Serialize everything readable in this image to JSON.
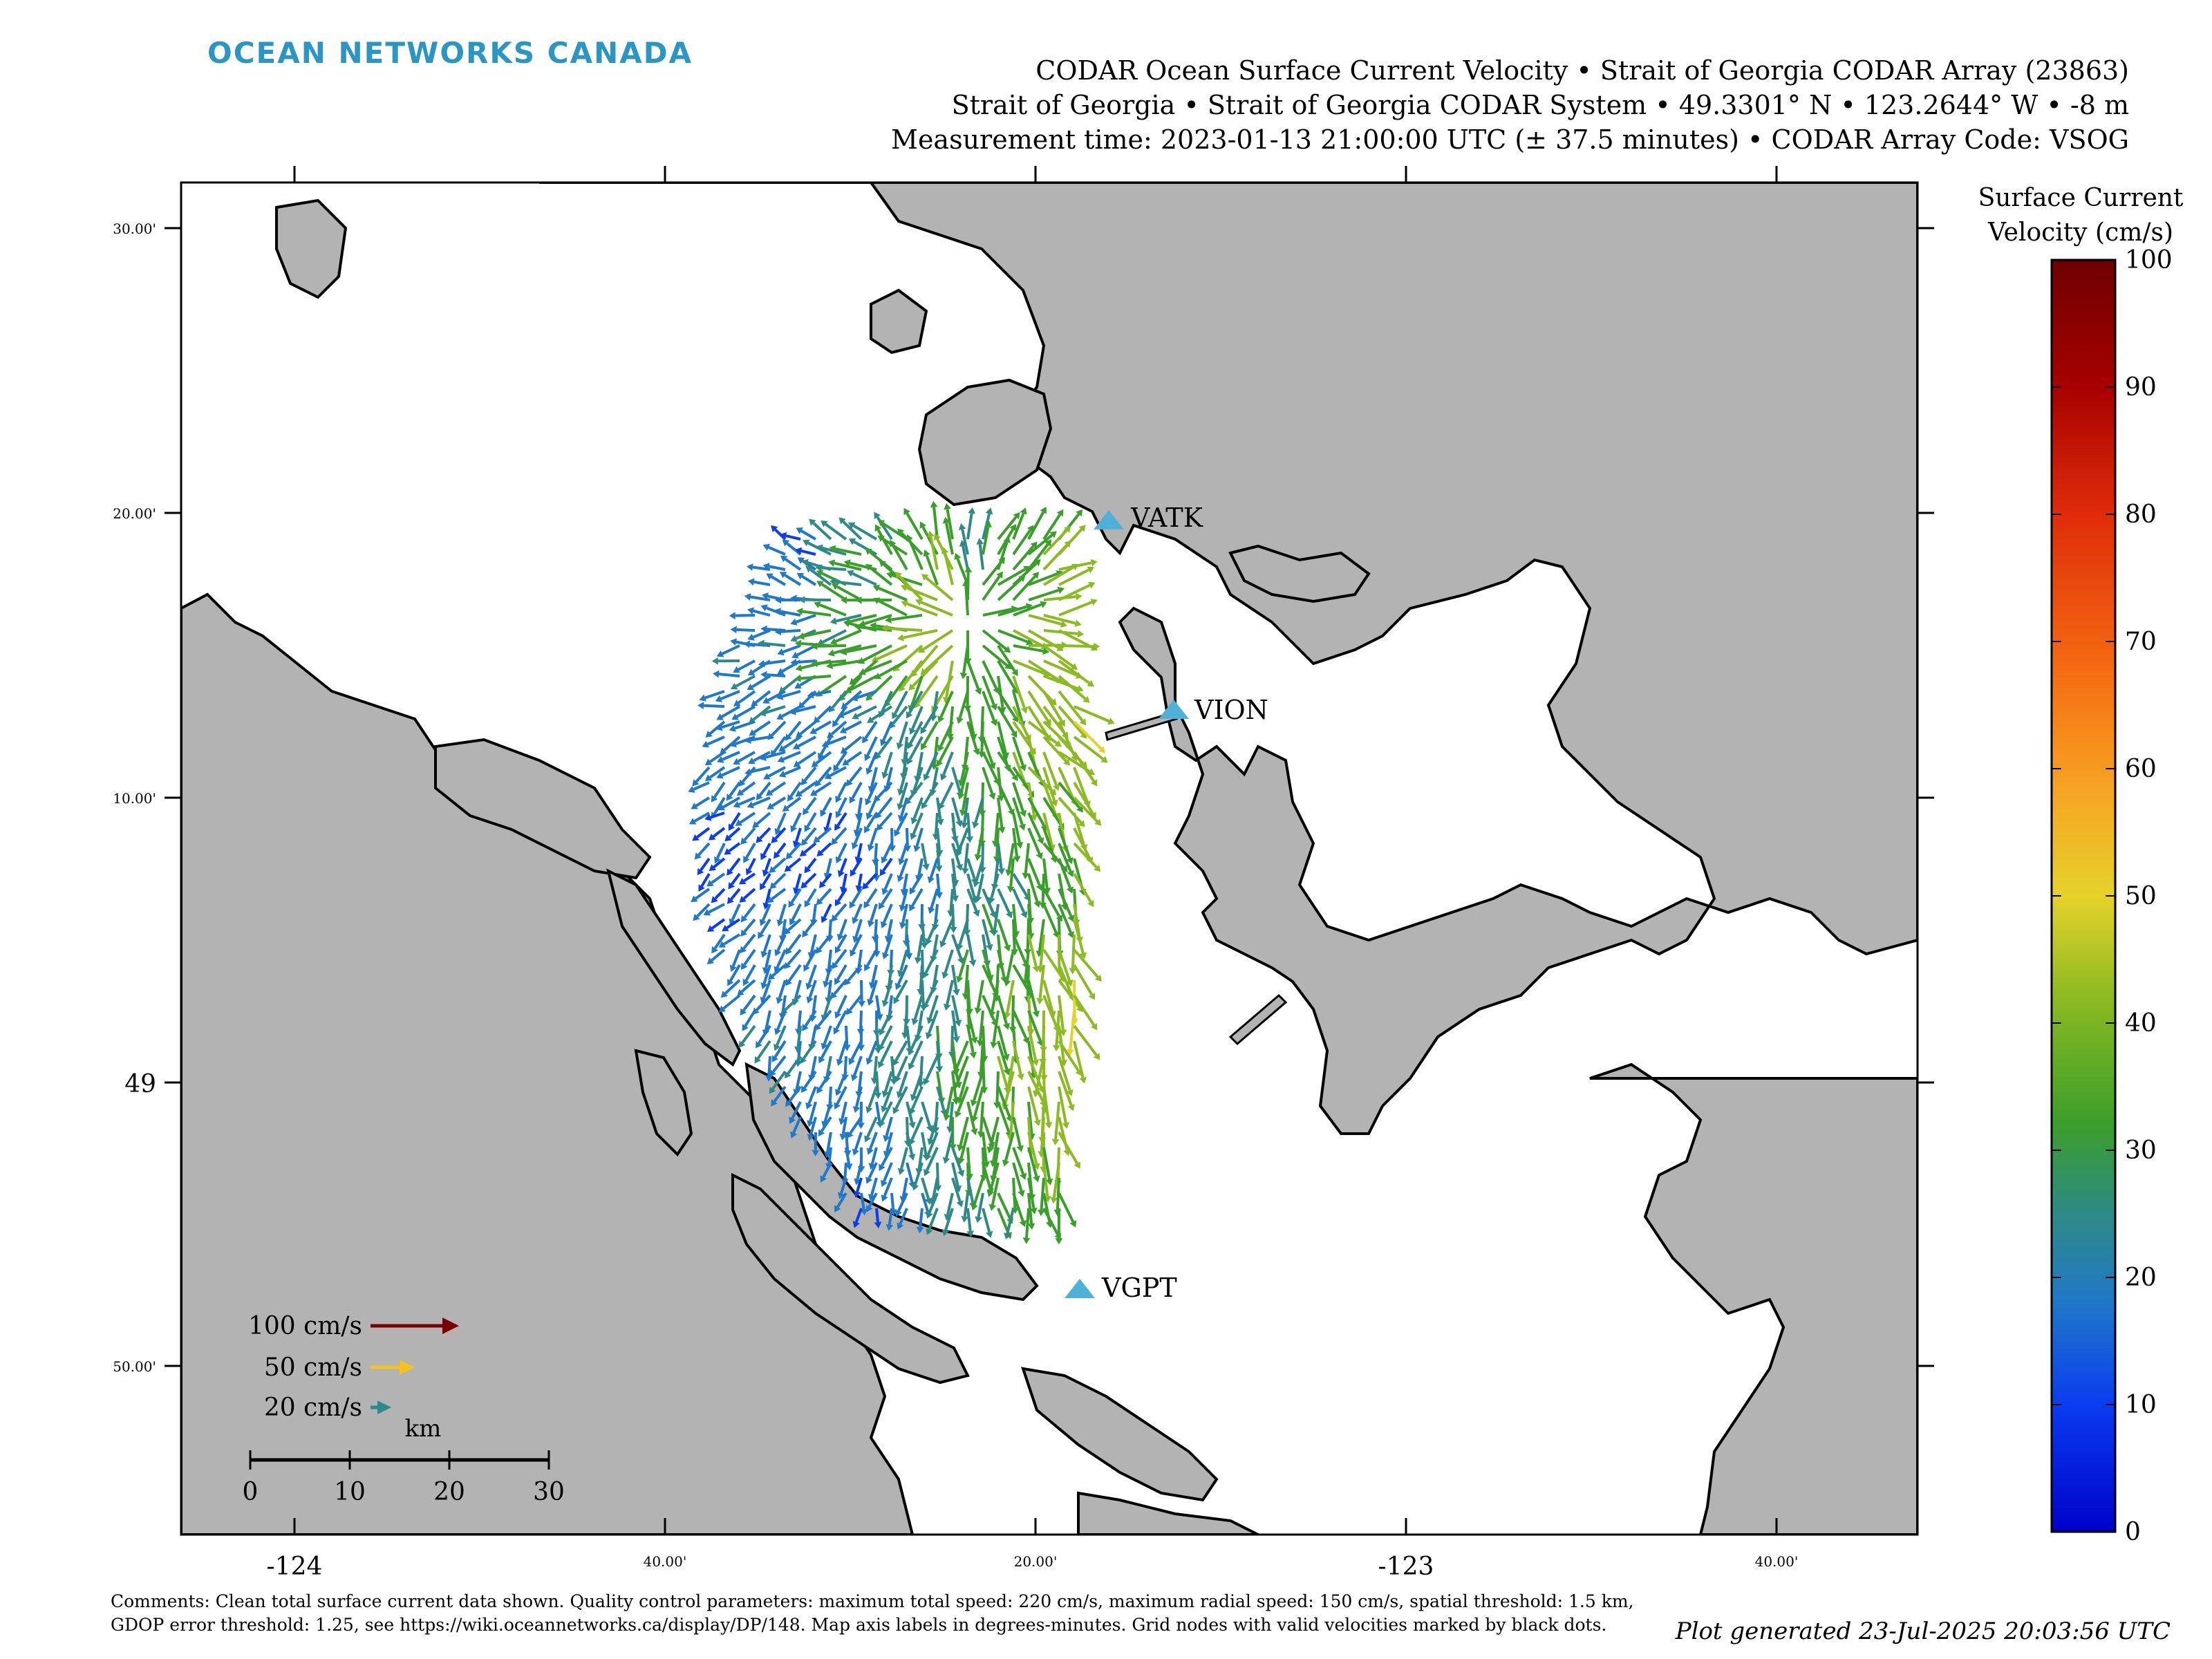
{
  "brand": "OCEAN NETWORKS CANADA",
  "title": {
    "line1": "CODAR Ocean Surface Current Velocity • Strait of Georgia CODAR Array (23863)",
    "line2": "Strait of Georgia • Strait of Georgia CODAR System • 49.3301° N • 123.2644° W • -8 m",
    "line3": "Measurement time: 2023-01-13 21:00:00 UTC (± 37.5 minutes) • CODAR Array Code: VSOG"
  },
  "map": {
    "x_ticks_bottom": [
      {
        "label": "-124",
        "major": true
      },
      {
        "label": "40.00'",
        "major": false
      },
      {
        "label": "20.00'",
        "major": false
      },
      {
        "label": "-123",
        "major": true
      },
      {
        "label": "40.00'",
        "major": false
      }
    ],
    "y_ticks_left": [
      {
        "label": "30.00'",
        "major": false
      },
      {
        "label": "20.00'",
        "major": false
      },
      {
        "label": "10.00'",
        "major": false
      },
      {
        "label": "49",
        "major": true
      },
      {
        "label": "50.00'",
        "major": false
      }
    ],
    "stations": [
      {
        "code": "VATK"
      },
      {
        "code": "VION"
      },
      {
        "code": "VGPT"
      }
    ],
    "land_color": "#b3b3b3",
    "water_color": "#ffffff"
  },
  "legend": {
    "reference_arrows": [
      {
        "label": "100 cm/s",
        "speed": 100,
        "color": "#7a0000"
      },
      {
        "label": "50 cm/s",
        "speed": 50,
        "color": "#f2c21e"
      },
      {
        "label": "20 cm/s",
        "speed": 20,
        "color": "#2e8a86"
      }
    ],
    "scale_bar": {
      "unit": "km",
      "ticks": [
        "0",
        "10",
        "20",
        "30"
      ]
    }
  },
  "colorbar": {
    "title_line1": "Surface Current",
    "title_line2": "Velocity (cm/s)",
    "min": 0,
    "max": 100,
    "ticks": [
      "0",
      "10",
      "20",
      "30",
      "40",
      "50",
      "60",
      "70",
      "80",
      "90",
      "100"
    ],
    "colors": [
      "#0000cc",
      "#0a3cf0",
      "#1f78c8",
      "#2e8a86",
      "#3a9e2a",
      "#8cba22",
      "#e6d22a",
      "#f6a623",
      "#f56a12",
      "#e02c0a",
      "#a80000",
      "#6e0000"
    ]
  },
  "comments": "Comments: Clean total surface current data shown. Quality control parameters: maximum total speed: 220 cm/s, maximum radial speed: 150 cm/s, spatial threshold: 1.5 km, GDOP error threshold: 1.25, see https://wiki.oceannetworks.ca/display/DP/148. Map axis labels in degrees-minutes. Grid nodes with valid velocities marked by black dots.",
  "generated": "Plot generated 23-Jul-2025 20:03:56 UTC"
}
